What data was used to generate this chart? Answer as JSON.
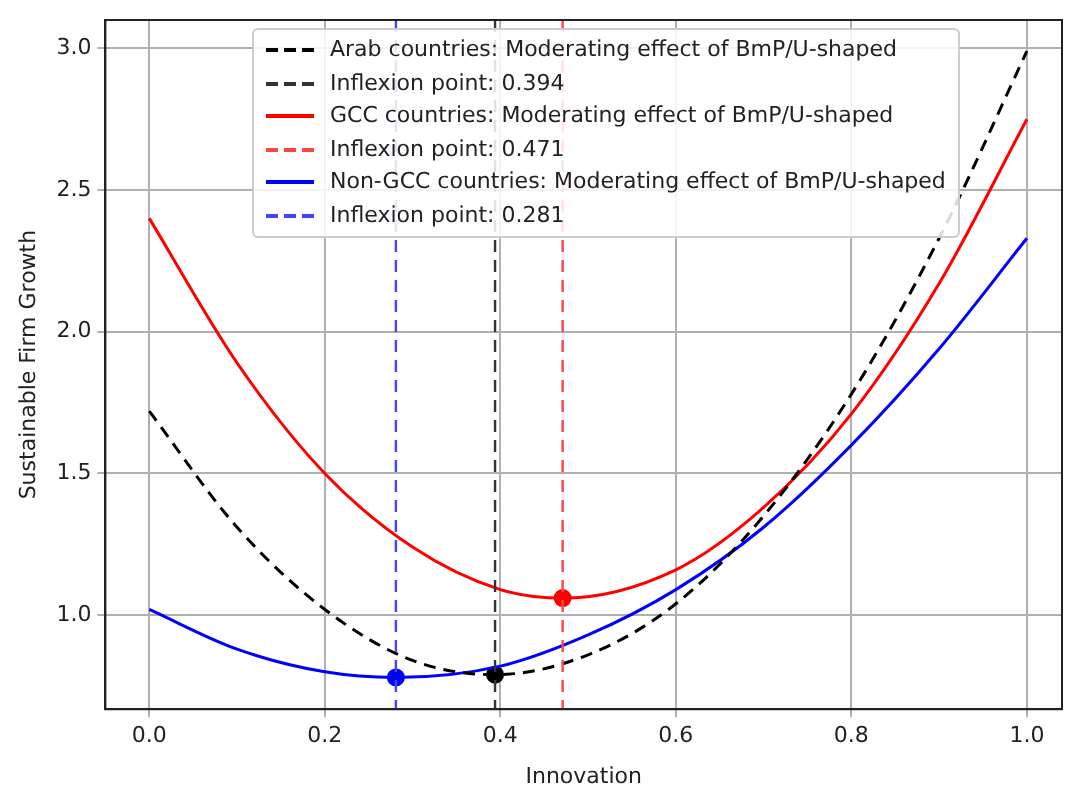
{
  "chart_data": {
    "type": "line",
    "xlabel": "Innovation",
    "ylabel": "Sustainable Firm Growth",
    "xlim": [
      -0.05,
      1.04
    ],
    "ylim": [
      0.668,
      3.1
    ],
    "xticks": [
      {
        "value": 0,
        "label": "0.0"
      },
      0.2,
      0.4,
      0.6,
      0.8,
      {
        "value": 1,
        "label": "1.0"
      }
    ],
    "yticks": [
      {
        "value": 1,
        "label": "1.0"
      },
      1.5,
      {
        "value": 2,
        "label": "2.0"
      },
      2.5,
      {
        "value": 3,
        "label": "3.0"
      }
    ],
    "grid": true,
    "legend": "top",
    "marker": "none",
    "series": [
      {
        "name": "Arab countries: Moderating effect of BmP/U-shaped",
        "color": "#000000",
        "line_style": "dashed",
        "x": [
          0,
          0.1,
          0.2,
          0.3,
          0.394,
          0.5,
          0.6,
          0.7,
          0.8,
          0.9,
          1
        ],
        "values": [
          1.72,
          1.31,
          1.02,
          0.84,
          0.79,
          0.86,
          1.04,
          1.35,
          1.78,
          2.33,
          2.99
        ]
      },
      {
        "name": "GCC countries: Moderating effect of BmP/U-shaped",
        "color": "#ff0000",
        "line_style": "solid",
        "x": [
          0,
          0.1,
          0.2,
          0.3,
          0.4,
          0.471,
          0.6,
          0.7,
          0.8,
          0.9,
          1
        ],
        "values": [
          2.4,
          1.89,
          1.5,
          1.24,
          1.09,
          1.06,
          1.16,
          1.38,
          1.71,
          2.17,
          2.75
        ]
      },
      {
        "name": "Non-GCC countries: Moderating effect of BmP/U-shaped",
        "color": "#0000ff",
        "line_style": "solid",
        "x": [
          0,
          0.1,
          0.2,
          0.281,
          0.4,
          0.5,
          0.6,
          0.7,
          0.8,
          0.9,
          1
        ],
        "values": [
          1.02,
          0.88,
          0.8,
          0.78,
          0.82,
          0.93,
          1.09,
          1.31,
          1.6,
          1.94,
          2.33
        ]
      },
      {
        "type": "scatter",
        "marker": "circle",
        "color": "#000000",
        "x": [
          0.394
        ],
        "values": [
          0.79
        ]
      },
      {
        "type": "scatter",
        "marker": "circle",
        "color": "#ff0000",
        "x": [
          0.471
        ],
        "values": [
          1.06
        ]
      },
      {
        "type": "scatter",
        "marker": "circle",
        "color": "#0000ff",
        "x": [
          0.281
        ],
        "values": [
          0.78
        ]
      }
    ],
    "ref_lines": [
      {
        "axis": "x",
        "value": 0.394,
        "label": "Inflexion point: 0.394",
        "color": "#333333",
        "line_style": "dashed"
      },
      {
        "axis": "x",
        "value": 0.471,
        "label": "Inflexion point: 0.471",
        "color": "#ff4444",
        "line_style": "dashed"
      },
      {
        "axis": "x",
        "value": 0.281,
        "label": "Inflexion point: 0.281",
        "color": "#4444ff",
        "line_style": "dashed"
      }
    ]
  }
}
